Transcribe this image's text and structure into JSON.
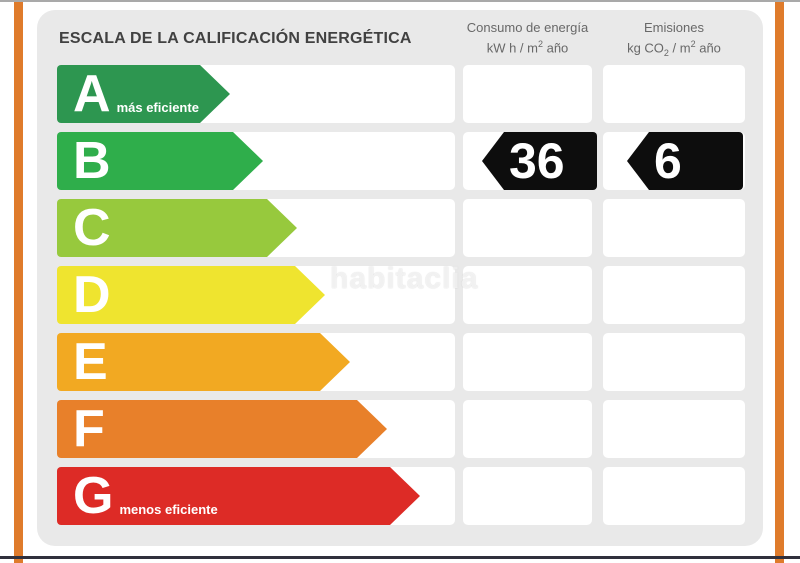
{
  "frame": {
    "stripe_color": "#df7b2b",
    "top_line_color": "#a9a9a9",
    "bottom_line_color": "#30303c",
    "background": "#ffffff"
  },
  "panel": {
    "background": "#e9e9e9",
    "title": "ESCALA DE LA CALIFICACIÓN ENERGÉTICA"
  },
  "table": {
    "columns": [
      {
        "id": "consumption",
        "title": "Consumo de energía",
        "unit_parts": [
          {
            "t": "kW h  / m"
          },
          {
            "t": "2",
            "style": "sup"
          },
          {
            "t": " año"
          }
        ]
      },
      {
        "id": "emissions",
        "title": "Emisiones",
        "unit_parts": [
          {
            "t": "kg CO"
          },
          {
            "t": "2",
            "style": "sub"
          },
          {
            "t": " / m"
          },
          {
            "t": "2",
            "style": "sup"
          },
          {
            "t": " año"
          }
        ]
      }
    ],
    "ratings": [
      {
        "letter": "A",
        "label": "más eficiente",
        "color": "#2d9650",
        "arrow_width": 173
      },
      {
        "letter": "B",
        "label": "",
        "color": "#2fae4b",
        "arrow_width": 206
      },
      {
        "letter": "C",
        "label": "",
        "color": "#97c93d",
        "arrow_width": 240
      },
      {
        "letter": "D",
        "label": "",
        "color": "#efe42f",
        "arrow_width": 268
      },
      {
        "letter": "E",
        "label": "",
        "color": "#f2a922",
        "arrow_width": 293
      },
      {
        "letter": "F",
        "label": "",
        "color": "#e8802a",
        "arrow_width": 330
      },
      {
        "letter": "G",
        "label": "menos eficiente",
        "color": "#dd2b26",
        "arrow_width": 363
      }
    ],
    "result": {
      "rating": "B",
      "consumption": "36",
      "emissions": "6",
      "tag_color": "#0d0d0d",
      "value_color": "#ffffff"
    }
  },
  "watermark": {
    "text": "habitaclia"
  },
  "chart_data": {
    "type": "bar",
    "title": "ESCALA DE LA CALIFICACIÓN ENERGÉTICA",
    "categories": [
      "A",
      "B",
      "C",
      "D",
      "E",
      "F",
      "G"
    ],
    "category_labels": [
      "más eficiente",
      "",
      "",
      "",
      "",
      "",
      "menos eficiente"
    ],
    "bar_colors": [
      "#2d9650",
      "#2fae4b",
      "#97c93d",
      "#efe42f",
      "#f2a922",
      "#e8802a",
      "#dd2b26"
    ],
    "relative_bar_widths": [
      173,
      206,
      240,
      268,
      293,
      330,
      363
    ],
    "highlighted_category": "B",
    "series": [
      {
        "name": "Consumo de energía kW h / m2 año",
        "values": [
          null,
          36,
          null,
          null,
          null,
          null,
          null
        ]
      },
      {
        "name": "Emisiones kg CO2 / m2 año",
        "values": [
          null,
          6,
          null,
          null,
          null,
          null,
          null
        ]
      }
    ],
    "legend_position": "none",
    "grid": false
  }
}
